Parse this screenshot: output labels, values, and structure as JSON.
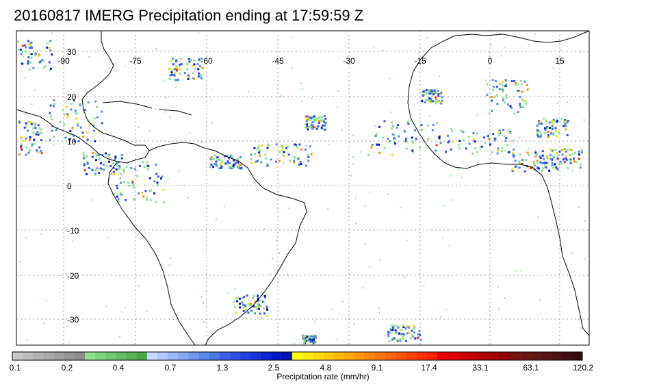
{
  "title": "20160817 IMERG Precipitation ending at 17:59:59 Z",
  "map": {
    "lon_labels": [
      "-90",
      "-75",
      "-60",
      "-45",
      "-30",
      "-15",
      "0",
      "15"
    ],
    "lat_labels": [
      "30",
      "20",
      "10",
      "0",
      "-10",
      "-20",
      "-30"
    ],
    "gridlines": "dotted",
    "colors": {
      "background": "#ffffff",
      "coastline": "#000000",
      "grid": "#9a9a9a"
    }
  },
  "legend": {
    "label": "Precipitation rate (mm/hr)",
    "tick_labels": [
      "0.1",
      "0.2",
      "0.4",
      "0.7",
      "1.3",
      "2.5",
      "4.8",
      "9.1",
      "17.4",
      "33.1",
      "63.1",
      "120.2"
    ],
    "colors": [
      "#c8c8c8",
      "#bebebe",
      "#b4b4b4",
      "#aaaaaa",
      "#a0a0a0",
      "#969696",
      "#8c8c8c",
      "#8fe28f",
      "#80d680",
      "#70ca70",
      "#62be62",
      "#56b256",
      "#4aa64a",
      "#c8d8ff",
      "#b2c8ff",
      "#9cb8fa",
      "#86a8f4",
      "#7098ee",
      "#5a88e8",
      "#4a78e2",
      "#3c5ee6",
      "#3050e0",
      "#2442da",
      "#1834d4",
      "#0c26ce",
      "#0018c8",
      "#0010b4",
      "#ffff00",
      "#ffee00",
      "#ffdd00",
      "#ffcc00",
      "#ffbb00",
      "#ffaa00",
      "#ff9900",
      "#ff8800",
      "#ff7700",
      "#ff6600",
      "#ff5500",
      "#ff4400",
      "#ff3300",
      "#ff2200",
      "#f00000",
      "#e00000",
      "#d00000",
      "#c00000",
      "#b00000",
      "#a00000",
      "#900000",
      "#7a1010",
      "#6e1414",
      "#621616",
      "#561616",
      "#4a1414",
      "#401010",
      "#360c0c"
    ]
  }
}
